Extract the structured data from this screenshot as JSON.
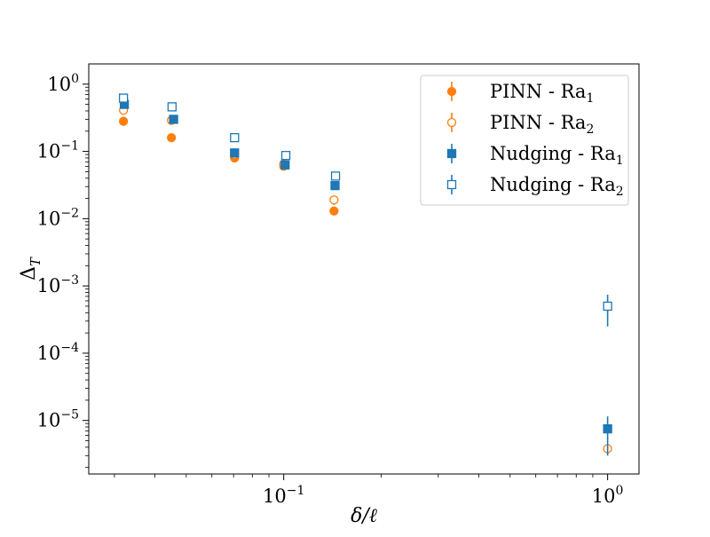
{
  "chart_data": {
    "type": "scatter",
    "xscale": "log",
    "yscale": "log",
    "xlim": [
      0.025,
      1.25
    ],
    "ylim": [
      1.6e-06,
      2.0
    ],
    "xlabel": "δ/ℓ",
    "ylabel_main": "Δ",
    "ylabel_sub": "T",
    "x_ticks": [
      {
        "value": 0.1,
        "base": "10",
        "exp": "−1"
      },
      {
        "value": 1.0,
        "base": "10",
        "exp": "0"
      }
    ],
    "x_minor_ticks": [
      0.03,
      0.04,
      0.05,
      0.06,
      0.07,
      0.08,
      0.09,
      0.2,
      0.3,
      0.4,
      0.5,
      0.6,
      0.7,
      0.8,
      0.9
    ],
    "y_ticks": [
      {
        "value": 1.0,
        "base": "10",
        "exp": "0"
      },
      {
        "value": 0.1,
        "base": "10",
        "exp": "−1"
      },
      {
        "value": 0.01,
        "base": "10",
        "exp": "−2"
      },
      {
        "value": 0.001,
        "base": "10",
        "exp": "−3"
      },
      {
        "value": 0.0001,
        "base": "10",
        "exp": "−4"
      },
      {
        "value": 1e-05,
        "base": "10",
        "exp": "−5"
      }
    ],
    "legend_position": "top-right",
    "series": [
      {
        "name_main": "PINN - Ra",
        "name_sub": "1",
        "color": "#ff7f0e",
        "marker": "circle",
        "filled": true,
        "points": [
          {
            "x": 0.032,
            "y": 0.28,
            "err": [
              0.0,
              0.0
            ]
          },
          {
            "x": 0.045,
            "y": 0.16,
            "err": [
              0.02,
              0.02
            ]
          },
          {
            "x": 0.0705,
            "y": 0.08,
            "err": [
              0.006,
              0.006
            ]
          },
          {
            "x": 0.1,
            "y": 0.06,
            "err": [
              0.004,
              0.004
            ]
          },
          {
            "x": 0.143,
            "y": 0.013,
            "err": [
              0.001,
              0.001
            ]
          }
        ]
      },
      {
        "name_main": "PINN - Ra",
        "name_sub": "2",
        "color": "#ff7f0e",
        "marker": "circle",
        "filled": false,
        "points": [
          {
            "x": 0.032,
            "y": 0.41,
            "err": [
              0.0,
              0.0
            ]
          },
          {
            "x": 0.045,
            "y": 0.29,
            "err": [
              0.0,
              0.0
            ]
          },
          {
            "x": 0.0705,
            "y": 0.09,
            "err": [
              0.006,
              0.006
            ]
          },
          {
            "x": 0.1,
            "y": 0.065,
            "err": [
              0.004,
              0.004
            ]
          },
          {
            "x": 0.143,
            "y": 0.019,
            "err": [
              0.003,
              0.003
            ]
          },
          {
            "x": 1.0,
            "y": 3.8e-06,
            "err": [
              6e-07,
              6e-07
            ]
          }
        ]
      },
      {
        "name_main": "Nudging - Ra",
        "name_sub": "1",
        "color": "#1f77b4",
        "marker": "square",
        "filled": true,
        "points": [
          {
            "x": 0.0322,
            "y": 0.5,
            "err": [
              0.03,
              0.03
            ]
          },
          {
            "x": 0.0457,
            "y": 0.3,
            "err": [
              0.02,
              0.02
            ]
          },
          {
            "x": 0.0705,
            "y": 0.095,
            "err": [
              0.008,
              0.008
            ]
          },
          {
            "x": 0.101,
            "y": 0.063,
            "err": [
              0.005,
              0.005
            ]
          },
          {
            "x": 0.144,
            "y": 0.031,
            "err": [
              0.002,
              0.002
            ]
          },
          {
            "x": 1.0,
            "y": 7.5e-06,
            "err": [
              4.5e-06,
              4e-06
            ]
          }
        ]
      },
      {
        "name_main": "Nudging - Ra",
        "name_sub": "2",
        "color": "#1f77b4",
        "marker": "square",
        "filled": false,
        "points": [
          {
            "x": 0.032,
            "y": 0.62,
            "err": [
              0.05,
              0.05
            ]
          },
          {
            "x": 0.0452,
            "y": 0.46,
            "err": [
              0.03,
              0.03
            ]
          },
          {
            "x": 0.0705,
            "y": 0.16,
            "err": [
              0.01,
              0.01
            ]
          },
          {
            "x": 0.1015,
            "y": 0.087,
            "err": [
              0.005,
              0.005
            ]
          },
          {
            "x": 0.1445,
            "y": 0.043,
            "err": [
              0.003,
              0.003
            ]
          },
          {
            "x": 1.0,
            "y": 0.0005,
            "err": [
              0.00025,
              0.00024
            ]
          }
        ]
      }
    ]
  }
}
